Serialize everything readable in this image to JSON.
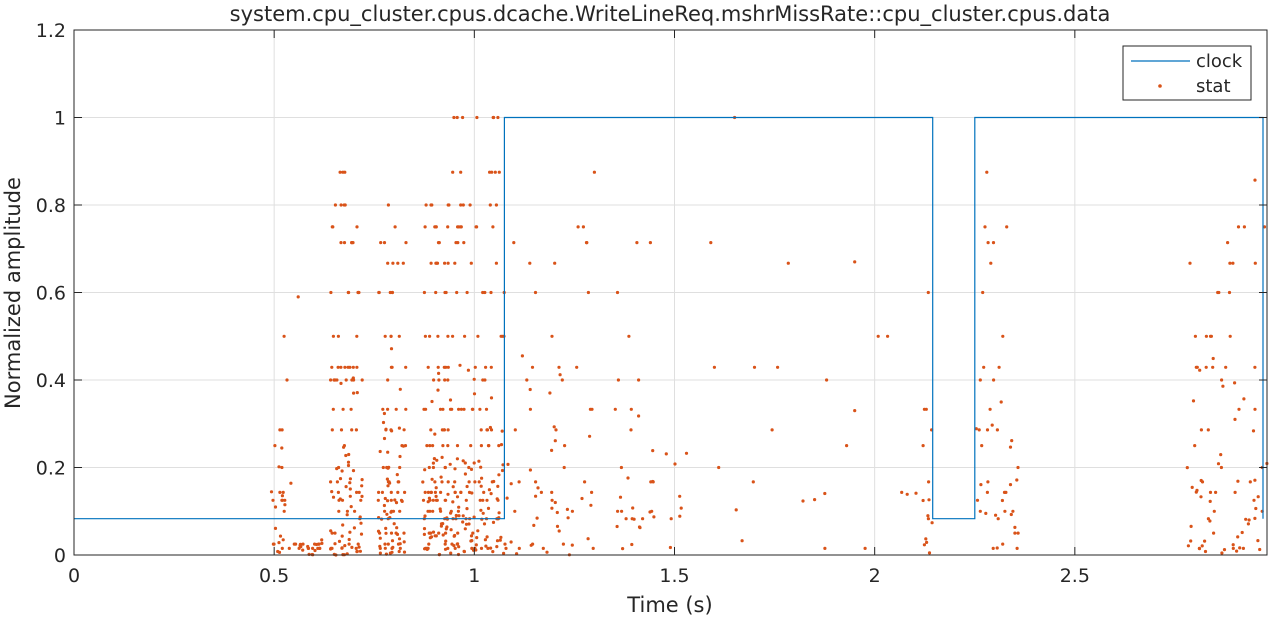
{
  "colors": {
    "clock": "#0072BD",
    "stat": "#D95319",
    "grid": "#DFDFDF",
    "axis": "#262626"
  },
  "chart_data": {
    "type": "scatter",
    "title": "system.cpu_cluster.cpus.dcache.WriteLineReq.mshrMissRate::cpu_cluster.cpus.data",
    "xlabel": "Time (s)",
    "ylabel": "Normalized amplitude",
    "xlim": [
      0,
      2.98
    ],
    "ylim": [
      0,
      1.2
    ],
    "xticks": [
      0,
      0.5,
      1,
      1.5,
      2,
      2.5
    ],
    "xtick_labels": [
      "0",
      "0.5",
      "1",
      "1.5",
      "2",
      "2.5"
    ],
    "yticks": [
      0,
      0.2,
      0.4,
      0.6,
      0.8,
      1,
      1.2
    ],
    "ytick_labels": [
      "0",
      "0.2",
      "0.4",
      "0.6",
      "0.8",
      "1",
      "1.2"
    ],
    "grid": true,
    "legend": {
      "location": "top-right",
      "entries": [
        "clock",
        "stat"
      ]
    },
    "series": [
      {
        "name": "clock",
        "style": "step-line",
        "x": [
          0,
          1.075,
          1.075,
          2.145,
          2.145,
          2.25,
          2.25,
          2.97,
          2.97
        ],
        "y": [
          0.083,
          0.083,
          1,
          1,
          0.083,
          0.083,
          1,
          1,
          0.083
        ]
      },
      {
        "name": "stat",
        "style": "dots",
        "levels": [
          1,
          0.875,
          0.8,
          0.75,
          0.714,
          0.667,
          0.6,
          0.5,
          0.429,
          0.4,
          0.333,
          0.286,
          0.25,
          0.2,
          0.167,
          0.143,
          0.125,
          0.1,
          0.083,
          0.05,
          0.025,
          0.015
        ],
        "clusters": [
          {
            "x_range": [
              0.49,
              0.545
            ],
            "density": 30,
            "y_max": 0.5
          },
          {
            "x_range": [
              0.55,
              0.62
            ],
            "density": 25,
            "y_max": 0.04
          },
          {
            "x_range": [
              0.64,
              0.72
            ],
            "density": 120,
            "y_max": 0.875
          },
          {
            "x_range": [
              0.76,
              0.83
            ],
            "density": 110,
            "y_max": 0.8
          },
          {
            "x_range": [
              0.87,
              0.93
            ],
            "density": 110,
            "y_max": 0.8
          },
          {
            "x_range": [
              0.93,
              1.075
            ],
            "density": 200,
            "y_max": 1
          },
          {
            "x_range": [
              1.075,
              1.3
            ],
            "density": 70,
            "y_max": 0.75
          },
          {
            "x_range": [
              1.35,
              1.5
            ],
            "density": 35,
            "y_max": 0.75
          },
          {
            "x_range": [
              1.5,
              2.14
            ],
            "density": 25,
            "y_max": 0.75
          },
          {
            "x_range": [
              2.12,
              2.145
            ],
            "density": 15,
            "y_max": 0.625
          },
          {
            "x_range": [
              2.25,
              2.36
            ],
            "density": 45,
            "y_max": 0.75
          },
          {
            "x_range": [
              2.78,
              2.98
            ],
            "density": 85,
            "y_max": 0.75
          }
        ],
        "isolated_points": [
          [
            0.56,
            0.59
          ],
          [
            1.3,
            0.875
          ],
          [
            1.95,
            0.67
          ],
          [
            1.93,
            0.25
          ],
          [
            1.88,
            0.4
          ],
          [
            1.95,
            0.33
          ],
          [
            2.28,
            0.875
          ],
          [
            2.95,
            0.857
          ],
          [
            1.65,
            1
          ],
          [
            2.9,
            0.31
          ]
        ]
      }
    ]
  }
}
